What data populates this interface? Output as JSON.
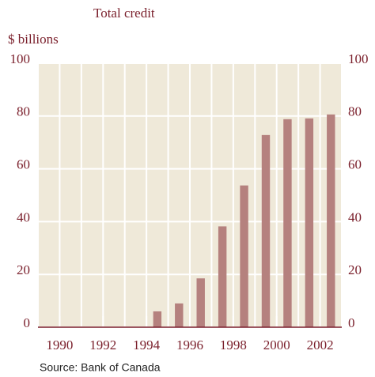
{
  "chart_data": {
    "type": "bar",
    "title": "Total credit",
    "y_label": "$ billions",
    "source": "Source: Bank of Canada",
    "x": [
      1994.5,
      1995.5,
      1996.5,
      1997.5,
      1998.5,
      1999.5,
      2000.5,
      2001.5,
      2002.5
    ],
    "values": [
      6,
      9,
      18.5,
      38.2,
      53.7,
      72.8,
      78.8,
      79.1,
      80.6
    ],
    "color": "#b5817e",
    "xlim": [
      1989,
      2003
    ],
    "xticks": [
      1990,
      1992,
      1994,
      1996,
      1998,
      2000,
      2002
    ],
    "ylim": [
      0,
      100
    ],
    "yticks": [
      0,
      20,
      40,
      60,
      80,
      100
    ],
    "grid": true
  }
}
